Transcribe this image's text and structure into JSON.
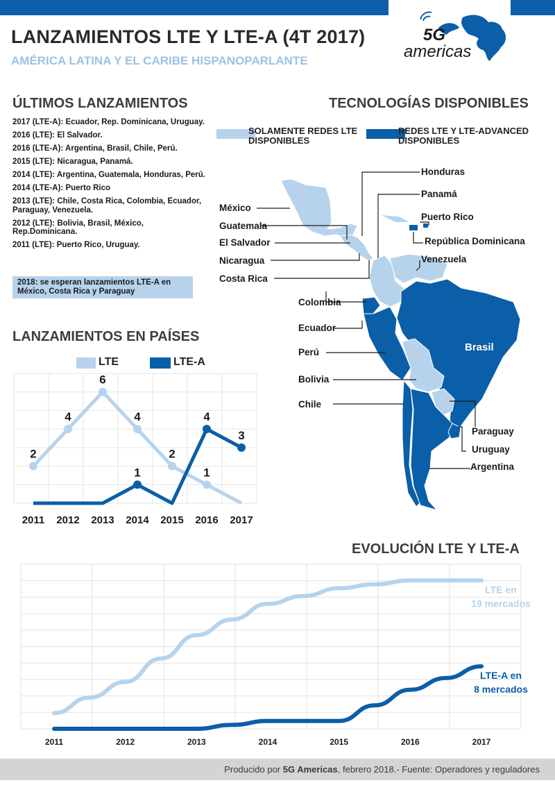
{
  "colors": {
    "blue": "#0b5ea8",
    "light_blue": "#b7d3ec",
    "grid": "#dcdcdc"
  },
  "header": {
    "title": "LANZAMIENTOS LTE Y LTE-A (4T 2017)",
    "subtitle": "AMÉRICA LATINA Y EL CARIBE HISPANOPARLANTE",
    "logo_text": "americas",
    "logo_mark": "5G"
  },
  "launches": {
    "heading": "ÚLTIMOS LANZAMIENTOS",
    "items": [
      "2017 (LTE-A): Ecuador, Rep. Dominicana, Uruguay.",
      "2016 (LTE): El Salvador.",
      "2016 (LTE-A): Argentina, Brasil, Chile, Perú.",
      "2015 (LTE): Nicaragua, Panamá.",
      "2014 (LTE): Argentina, Guatemala, Honduras, Perú.",
      "2014 (LTE-A): Puerto Rico",
      "2013 (LTE): Chile, Costa Rica, Colombia, Ecuador,  Paraguay, Venezuela.",
      "2012 (LTE): Bolivia, Brasil, México, Rep.Dominicana.",
      "2011 (LTE): Puerto Rico, Uruguay."
    ],
    "note": "2018: se esperan lanzamientos LTE-A en México, Costa Rica y Paraguay"
  },
  "technologies": {
    "heading": "TECNOLOGÍAS DISPONIBLES",
    "legend_lte_only": "SOLAMENTE REDES LTE DISPONIBLES",
    "legend_lte_a": "REDES LTE Y LTE-ADVANCED DISPONIBLES",
    "labels": {
      "mexico": "México",
      "guatemala": "Guatemala",
      "el_salvador": "El Salvador",
      "nicaragua": "Nicaragua",
      "costa_rica": "Costa Rica",
      "honduras": "Honduras",
      "panama": "Panamá",
      "puerto_rico": "Puerto Rico",
      "dominicana": "República Dominicana",
      "venezuela": "Venezuela",
      "colombia": "Colombia",
      "ecuador": "Ecuador",
      "peru": "Perú",
      "brasil": "Brasil",
      "bolivia": "Bolivia",
      "chile": "Chile",
      "paraguay": "Paraguay",
      "uruguay": "Uruguay",
      "argentina": "Argentina"
    },
    "lte_only": [
      "México",
      "Guatemala",
      "El Salvador",
      "Nicaragua",
      "Costa Rica",
      "Honduras",
      "Panamá",
      "Venezuela",
      "Colombia",
      "Bolivia",
      "Paraguay"
    ],
    "lte_a": [
      "Puerto Rico",
      "República Dominicana",
      "Ecuador",
      "Perú",
      "Brasil",
      "Chile",
      "Uruguay",
      "Argentina"
    ]
  },
  "chart_data": [
    {
      "type": "line",
      "title": "LANZAMIENTOS EN PAÍSES",
      "categories": [
        "2011",
        "2012",
        "2013",
        "2014",
        "2015",
        "2016",
        "2017"
      ],
      "ylim": [
        0,
        7
      ],
      "grid": true,
      "legend": "top",
      "series": [
        {
          "name": "LTE",
          "color": "#b7d3ec",
          "values": [
            2,
            4,
            6,
            4,
            2,
            1,
            0
          ],
          "labels": [
            "2",
            "4",
            "6",
            "4",
            "2",
            "1",
            ""
          ]
        },
        {
          "name": "LTE-A",
          "color": "#0b5ea8",
          "values": [
            0,
            0,
            0,
            1,
            0,
            4,
            3
          ],
          "labels": [
            "",
            "",
            "",
            "1",
            "",
            "4",
            "3"
          ]
        }
      ]
    },
    {
      "type": "line",
      "title": "EVOLUCIÓN LTE Y LTE-A",
      "categories": [
        "2011",
        "2012",
        "2013",
        "2014",
        "2015",
        "2016",
        "2017"
      ],
      "ylim": [
        0,
        20
      ],
      "grid": true,
      "series": [
        {
          "name": "LTE",
          "color": "#b7d3ec",
          "end_label": [
            "LTE en",
            "19 mercados"
          ],
          "x": [
            2011,
            2011.5,
            2012,
            2012.5,
            2013,
            2013.5,
            2014,
            2014.5,
            2015,
            2015.5,
            2016,
            2016.5,
            2017
          ],
          "values": [
            2,
            4,
            6,
            9,
            12,
            14,
            16,
            17,
            18,
            18.5,
            19,
            19,
            19
          ]
        },
        {
          "name": "LTE-A",
          "color": "#0b5ea8",
          "end_label": [
            "LTE-A en",
            "8 mercados"
          ],
          "x": [
            2011,
            2012,
            2013,
            2013.5,
            2014,
            2014.5,
            2015,
            2015.5,
            2016,
            2016.5,
            2017
          ],
          "values": [
            0,
            0,
            0,
            0.5,
            1,
            1,
            1,
            3,
            5,
            6.5,
            8
          ]
        }
      ]
    }
  ],
  "footer": {
    "prefix": "Producido por ",
    "brand": "5G Americas",
    "suffix": ", febrero 2018.- Fuente: Operadores y reguladores"
  }
}
